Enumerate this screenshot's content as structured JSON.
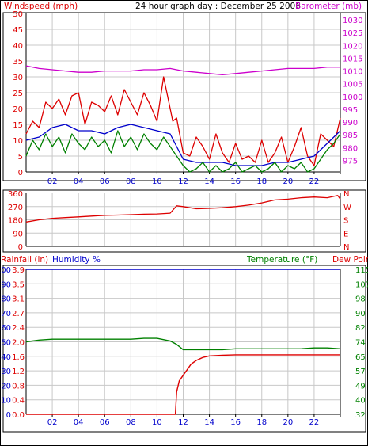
{
  "header": {
    "wind_label": "Windspeed (mph)",
    "title": "24 hour graph day : December 25 2006",
    "baro_label": "Barometer (mb)"
  },
  "panel3_header": {
    "rain_label": "Rainfall (in)",
    "hum_label": "Humidity %",
    "temp_label": "Temperature (°F)",
    "dew_label": "Dew Point"
  },
  "colors": {
    "red": "#dd0000",
    "green": "#008000",
    "blue": "#0000cc",
    "magenta": "#cc00cc",
    "grid": "#c8c8c8",
    "frame": "#000000"
  },
  "chart_data": [
    {
      "type": "line",
      "title": "24 hour graph day : December 25 2006",
      "x_ticks": [
        "02",
        "04",
        "06",
        "08",
        "10",
        "12",
        "14",
        "16",
        "18",
        "20",
        "22",
        ""
      ],
      "left_axis": {
        "label": "Windspeed (mph)",
        "ticks": [
          "0",
          "5",
          "10",
          "15",
          "20",
          "25",
          "30",
          "35",
          "40",
          "45",
          "50"
        ],
        "range": [
          0,
          50
        ]
      },
      "right_axis": {
        "label": "Barometer (mb)",
        "ticks": [
          "975",
          "980",
          "985",
          "990",
          "995",
          "1000",
          "1005",
          "1010",
          "1015",
          "1020",
          "1025",
          "1030"
        ],
        "range": [
          975,
          1030
        ]
      },
      "series": [
        {
          "name": "Windspeed (mph)",
          "color": "#dd0000",
          "axis": "left",
          "x": [
            0,
            0.5,
            1,
            1.5,
            2,
            2.5,
            3,
            3.5,
            4,
            4.5,
            5,
            5.5,
            6,
            6.5,
            7,
            7.5,
            8,
            8.5,
            9,
            9.5,
            10,
            10.5,
            11,
            11.2,
            11.5,
            12,
            12.5,
            13,
            13.5,
            14,
            14.5,
            15,
            15.5,
            16,
            16.5,
            17,
            17.5,
            18,
            18.5,
            19,
            19.5,
            20,
            20.5,
            21,
            21.5,
            22,
            22.5,
            23,
            23.5,
            24
          ],
          "values": [
            12,
            16,
            14,
            22,
            20,
            23,
            18,
            24,
            25,
            15,
            22,
            21,
            19,
            24,
            18,
            26,
            22,
            18,
            25,
            21,
            16,
            30,
            20,
            16,
            17,
            6,
            5,
            11,
            8,
            4,
            12,
            6,
            3,
            9,
            4,
            5,
            3,
            10,
            3,
            6,
            11,
            3,
            8,
            14,
            5,
            2,
            12,
            10,
            8,
            17
          ]
        },
        {
          "name": "Wind average (mph)",
          "color": "#0000cc",
          "axis": "left",
          "x": [
            0,
            1,
            2,
            3,
            4,
            5,
            6,
            7,
            8,
            9,
            10,
            11,
            11.5,
            12,
            13,
            14,
            15,
            16,
            17,
            18,
            19,
            20,
            21,
            22,
            23,
            24
          ],
          "values": [
            10,
            11,
            14,
            15,
            13,
            13,
            12,
            14,
            15,
            14,
            13,
            12,
            8,
            4,
            3,
            3,
            3,
            2,
            2,
            2,
            3,
            3,
            4,
            5,
            9,
            13
          ]
        },
        {
          "name": "Gust low (mph)",
          "color": "#008000",
          "axis": "left",
          "x": [
            0,
            0.5,
            1,
            1.5,
            2,
            2.5,
            3,
            3.5,
            4,
            4.5,
            5,
            5.5,
            6,
            6.5,
            7,
            7.5,
            8,
            8.5,
            9,
            9.5,
            10,
            10.5,
            11,
            11.5,
            12,
            12.5,
            13,
            13.5,
            14,
            14.5,
            15,
            15.5,
            16,
            16.5,
            17,
            17.5,
            18,
            18.5,
            19,
            19.5,
            20,
            20.5,
            21,
            21.5,
            22,
            22.5,
            23,
            23.5,
            24
          ],
          "values": [
            5,
            10,
            7,
            12,
            8,
            11,
            6,
            12,
            9,
            7,
            11,
            8,
            10,
            6,
            13,
            8,
            11,
            7,
            12,
            9,
            7,
            11,
            8,
            5,
            2,
            0,
            1,
            3,
            0,
            2,
            0,
            1,
            3,
            0,
            1,
            2,
            0,
            1,
            3,
            0,
            2,
            1,
            3,
            0,
            1,
            4,
            7,
            9,
            12
          ]
        },
        {
          "name": "Barometer (mb)",
          "color": "#cc00cc",
          "axis": "right",
          "x": [
            0,
            1,
            2,
            3,
            4,
            5,
            6,
            7,
            8,
            9,
            10,
            11,
            12,
            13,
            14,
            15,
            16,
            17,
            18,
            19,
            20,
            21,
            22,
            23,
            24
          ],
          "values": [
            1012,
            1011,
            1010.5,
            1010,
            1009.5,
            1009.5,
            1010,
            1010,
            1010,
            1010.5,
            1010.5,
            1011,
            1010,
            1009.5,
            1009,
            1008.5,
            1009,
            1009.5,
            1010,
            1010.5,
            1011,
            1011,
            1011,
            1011.5,
            1011.5
          ]
        }
      ]
    },
    {
      "type": "line",
      "x_ticks": [
        "02",
        "04",
        "06",
        "08",
        "10",
        "12",
        "14",
        "16",
        "18",
        "20",
        "22",
        ""
      ],
      "left_axis": {
        "label": "",
        "ticks": [
          "0",
          "90",
          "180",
          "270",
          "360"
        ],
        "range": [
          0,
          360
        ]
      },
      "right_axis": {
        "label": "",
        "ticks": [
          "N",
          "E",
          "S",
          "W",
          "N"
        ],
        "range": [
          0,
          360
        ]
      },
      "series": [
        {
          "name": "Wind direction (°)",
          "color": "#dd0000",
          "x": [
            0,
            1,
            2,
            3,
            4,
            5,
            6,
            7,
            8,
            9,
            10,
            11,
            11.5,
            12,
            13,
            14,
            15,
            16,
            17,
            18,
            19,
            20,
            21,
            22,
            23,
            23.8,
            24
          ],
          "values": [
            165,
            180,
            190,
            195,
            200,
            205,
            210,
            212,
            215,
            218,
            220,
            225,
            275,
            270,
            255,
            258,
            262,
            270,
            280,
            295,
            315,
            320,
            330,
            335,
            330,
            345,
            320
          ]
        }
      ]
    },
    {
      "type": "line",
      "x_ticks": [
        "02",
        "04",
        "06",
        "08",
        "10",
        "12",
        "14",
        "16",
        "18",
        "20",
        "22",
        ""
      ],
      "left_axis_rain": {
        "label": "Rainfall (in)",
        "ticks": [
          "0.0",
          "0.4",
          "0.8",
          "1.2",
          "1.6",
          "2.0",
          "2.4",
          "2.7",
          "3.1",
          "3.5",
          "3.9"
        ],
        "range": [
          0,
          3.9
        ]
      },
      "left_axis_humidity": {
        "label": "Humidity %",
        "ticks": [
          "0",
          "10",
          "20",
          "30",
          "40",
          "50",
          "60",
          "70",
          "80",
          "90",
          "100"
        ],
        "range": [
          0,
          100
        ]
      },
      "right_axis": {
        "label": "Temperature (°F)",
        "ticks": [
          "32",
          "40",
          "49",
          "57",
          "65",
          "74",
          "82",
          "90",
          "98",
          "107",
          "115"
        ],
        "range": [
          32,
          115
        ]
      },
      "series": [
        {
          "name": "Rainfall (in)",
          "color": "#dd0000",
          "axis": "rain",
          "x": [
            0,
            11.4,
            11.5,
            11.7,
            12,
            12.3,
            12.6,
            13,
            13.5,
            14,
            15,
            16,
            17,
            18,
            19,
            20,
            21,
            22,
            23,
            24
          ],
          "values": [
            0,
            0,
            0.6,
            0.9,
            1.05,
            1.2,
            1.35,
            1.45,
            1.53,
            1.57,
            1.59,
            1.6,
            1.6,
            1.6,
            1.6,
            1.6,
            1.6,
            1.6,
            1.6,
            1.6
          ]
        },
        {
          "name": "Humidity %",
          "color": "#0000cc",
          "axis": "humidity",
          "x": [
            0,
            24
          ],
          "values": [
            100,
            100
          ]
        },
        {
          "name": "Temperature (°F)",
          "color": "#008000",
          "axis": "temperature",
          "x": [
            0,
            1,
            2,
            3,
            4,
            5,
            6,
            7,
            8,
            9,
            10,
            11,
            11.5,
            12,
            13,
            14,
            15,
            16,
            17,
            18,
            19,
            20,
            21,
            22,
            23,
            24
          ],
          "values": [
            73.5,
            74.5,
            75,
            75,
            75,
            75,
            75,
            75,
            75,
            75.5,
            75.5,
            74,
            72,
            69,
            69,
            69,
            69,
            69.5,
            69.5,
            69.5,
            69.5,
            69.5,
            69.5,
            70,
            70,
            69.5
          ]
        }
      ]
    }
  ]
}
